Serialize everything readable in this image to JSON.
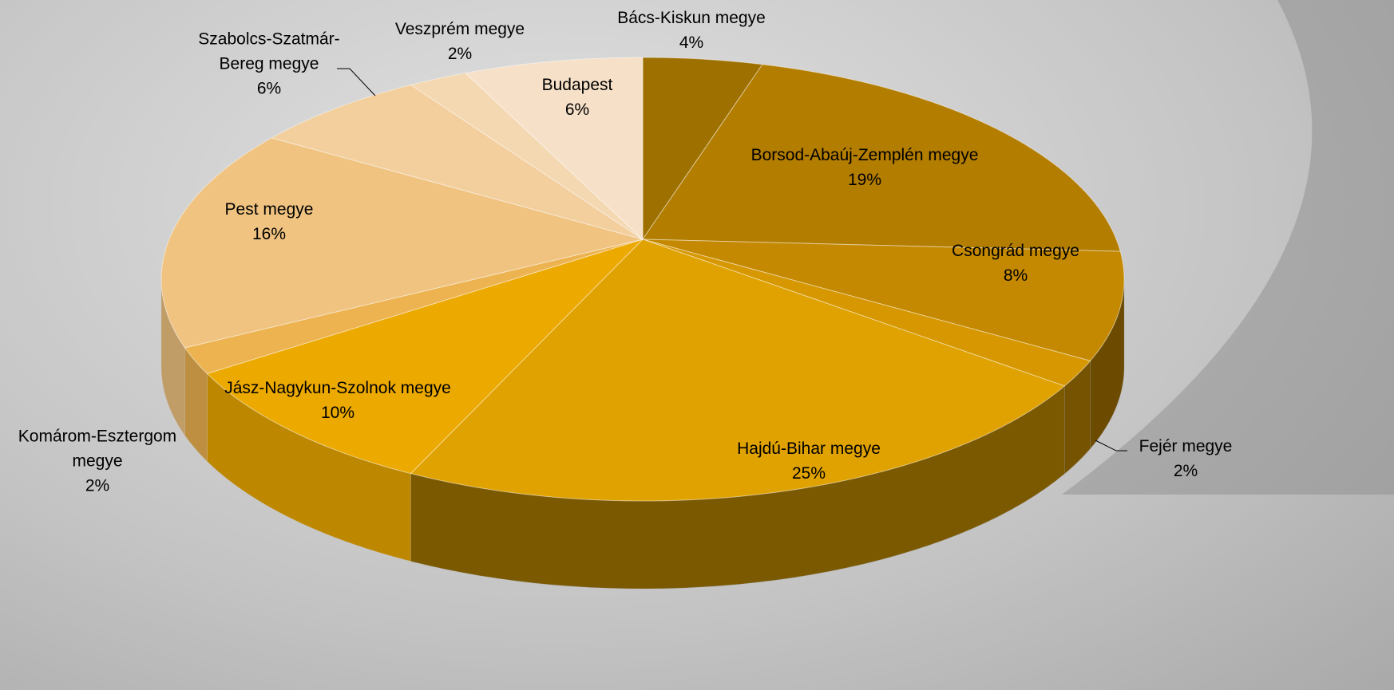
{
  "chart_data": {
    "type": "pie",
    "categories": [
      "Bács-Kiskun megye",
      "Borsod-Abaúj-Zemplén megye",
      "Csongrád megye",
      "Fejér megye",
      "Hajdú-Bihar megye",
      "Jász-Nagykun-Szolnok megye",
      "Komárom-Esztergom megye",
      "Pest megye",
      "Szabolcs-Szatmár-Bereg megye",
      "Veszprém megye",
      "Budapest"
    ],
    "values": [
      4,
      19,
      8,
      2,
      25,
      10,
      2,
      16,
      6,
      2,
      6
    ],
    "value_labels": [
      "4%",
      "19%",
      "8%",
      "2%",
      "25%",
      "10%",
      "2%",
      "16%",
      "6%",
      "2%",
      "6%"
    ],
    "colors": [
      "#9e7000",
      "#b37d00",
      "#c48900",
      "#d69700",
      "#e0a200",
      "#eca900",
      "#edb350",
      "#f0c381",
      "#f2cf9d",
      "#f4d8b2",
      "#f6e0c8"
    ]
  }
}
